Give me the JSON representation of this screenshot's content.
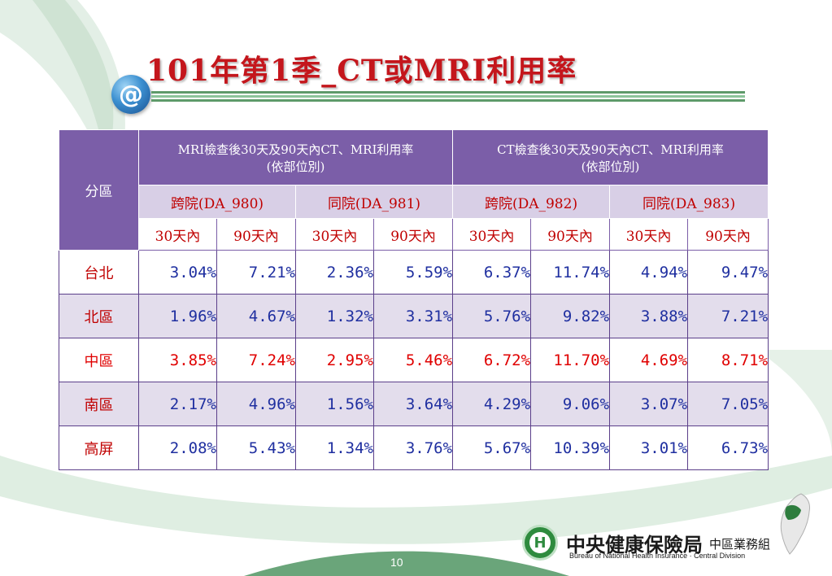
{
  "title": "101年第1季_CT或MRI利用率",
  "icon": "at-sign-icon",
  "colors": {
    "title": "#c4161c",
    "header_dark": "#7b5ea8",
    "header_light": "#d8cfe6",
    "value_blue": "#1f2fa0",
    "value_red": "#e00000",
    "footer_green": "#5e9a6a"
  },
  "table": {
    "region_header": "分區",
    "group_headers": [
      {
        "line1": "MRI檢查後30天及90天內CT、MRI利用率",
        "line2": "(依部位別)"
      },
      {
        "line1": "CT檢查後30天及90天內CT、MRI利用率",
        "line2": "(依部位別)"
      }
    ],
    "sub_headers": [
      "跨院(DA_980)",
      "同院(DA_981)",
      "跨院(DA_982)",
      "同院(DA_983)"
    ],
    "period_headers": [
      "30天內",
      "90天內",
      "30天內",
      "90天內",
      "30天內",
      "90天內",
      "30天內",
      "90天內"
    ],
    "rows": [
      {
        "region": "台北",
        "values": [
          "3.04%",
          "7.21%",
          "2.36%",
          "5.59%",
          "6.37%",
          "11.74%",
          "4.94%",
          "9.47%"
        ]
      },
      {
        "region": "北區",
        "values": [
          "1.96%",
          "4.67%",
          "1.32%",
          "3.31%",
          "5.76%",
          "9.82%",
          "3.88%",
          "7.21%"
        ]
      },
      {
        "region": "中區",
        "values": [
          "3.85%",
          "7.24%",
          "2.95%",
          "5.46%",
          "6.72%",
          "11.70%",
          "4.69%",
          "8.71%"
        ]
      },
      {
        "region": "南區",
        "values": [
          "2.17%",
          "4.96%",
          "1.56%",
          "3.64%",
          "4.29%",
          "9.06%",
          "3.07%",
          "7.05%"
        ]
      },
      {
        "region": "高屏",
        "values": [
          "2.08%",
          "5.43%",
          "1.34%",
          "3.76%",
          "5.67%",
          "10.39%",
          "3.01%",
          "6.73%"
        ]
      }
    ]
  },
  "footer": {
    "page_number": "10",
    "org_name": "中央健康保險局",
    "org_division": "中區業務組",
    "org_english": "Bureau of National Health Insurance · Central Division",
    "logo_icon": "nhi-logo-icon",
    "map_icon": "taiwan-map-icon"
  }
}
